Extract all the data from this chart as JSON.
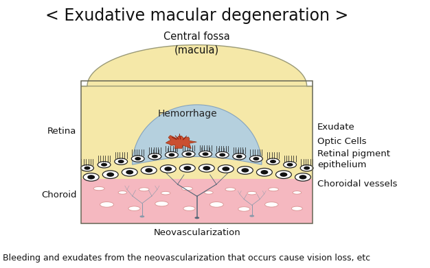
{
  "title": "< Exudative macular degeneration >",
  "title_fontsize": 17,
  "subtitle": "Central fossa\n(macula)",
  "subtitle_fontsize": 10.5,
  "footer": "Bleeding and exudates from the neovascularization that occurs cause vision loss, etc",
  "footer_fontsize": 9,
  "label_retina": "Retina",
  "label_choroid": "Choroid",
  "label_hemorrhage": "Hemorrhage",
  "label_exudate": "Exudate",
  "label_optic_cells": "Optic Cells",
  "label_retinal_pigment": "Retinal pigment\nepithelium",
  "label_choroidal_vessels": "Choroidal vessels",
  "label_neovascularization": "Neovascularization",
  "label_fontsize": 9.5,
  "color_retina_bg": "#F5E8A8",
  "color_blue_bleb": "#AACCE8",
  "color_pink_choroid": "#F5B8C0",
  "color_hemorrhage": "#CC3311",
  "color_outline": "#333333",
  "color_title": "#111111",
  "bg_color": "#FFFFFF"
}
